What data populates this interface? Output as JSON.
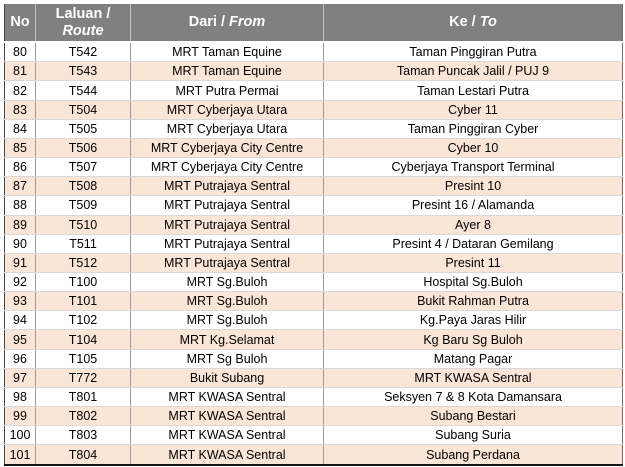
{
  "table": {
    "header": {
      "no": "No",
      "laluan_line1": "Laluan /",
      "laluan_line2": "Route",
      "dari_text": "Dari /",
      "dari_italic": "From",
      "ke_text": "Ke /",
      "ke_italic": "To"
    },
    "rows": [
      {
        "no": "80",
        "route": "T542",
        "from": "MRT Taman Equine",
        "to": "Taman Pinggiran Putra"
      },
      {
        "no": "81",
        "route": "T543",
        "from": "MRT Taman Equine",
        "to": "Taman Puncak Jalil / PUJ 9"
      },
      {
        "no": "82",
        "route": "T544",
        "from": "MRT Putra Permai",
        "to": "Taman Lestari Putra"
      },
      {
        "no": "83",
        "route": "T504",
        "from": "MRT Cyberjaya Utara",
        "to": "Cyber 11"
      },
      {
        "no": "84",
        "route": "T505",
        "from": "MRT Cyberjaya Utara",
        "to": "Taman Pinggiran Cyber"
      },
      {
        "no": "85",
        "route": "T506",
        "from": "MRT Cyberjaya City Centre",
        "to": "Cyber 10"
      },
      {
        "no": "86",
        "route": "T507",
        "from": "MRT Cyberjaya City Centre",
        "to": "Cyberjaya Transport Terminal"
      },
      {
        "no": "87",
        "route": "T508",
        "from": "MRT Putrajaya Sentral",
        "to": "Presint 10"
      },
      {
        "no": "88",
        "route": "T509",
        "from": "MRT Putrajaya Sentral",
        "to": "Presint 16 / Alamanda"
      },
      {
        "no": "89",
        "route": "T510",
        "from": "MRT Putrajaya Sentral",
        "to": "Ayer 8"
      },
      {
        "no": "90",
        "route": "T511",
        "from": "MRT Putrajaya Sentral",
        "to": "Presint 4 / Dataran Gemilang"
      },
      {
        "no": "91",
        "route": "T512",
        "from": "MRT Putrajaya Sentral",
        "to": "Presint 11"
      },
      {
        "no": "92",
        "route": "T100",
        "from": "MRT Sg.Buloh",
        "to": "Hospital Sg.Buloh"
      },
      {
        "no": "93",
        "route": "T101",
        "from": "MRT Sg.Buloh",
        "to": "Bukit Rahman Putra"
      },
      {
        "no": "94",
        "route": "T102",
        "from": "MRT Sg.Buloh",
        "to": "Kg.Paya Jaras Hilir"
      },
      {
        "no": "95",
        "route": "T104",
        "from": "MRT Kg.Selamat",
        "to": "Kg Baru Sg Buloh"
      },
      {
        "no": "96",
        "route": "T105",
        "from": "MRT Sg Buloh",
        "to": "Matang Pagar"
      },
      {
        "no": "97",
        "route": "T772",
        "from": "Bukit Subang",
        "to": "MRT KWASA Sentral"
      },
      {
        "no": "98",
        "route": "T801",
        "from": "MRT KWASA Sentral",
        "to": "Seksyen 7 & 8 Kota Damansara"
      },
      {
        "no": "99",
        "route": "T802",
        "from": "MRT KWASA Sentral",
        "to": "Subang Bestari"
      },
      {
        "no": "100",
        "route": "T803",
        "from": "MRT KWASA Sentral",
        "to": "Subang Suria"
      },
      {
        "no": "101",
        "route": "T804",
        "from": "MRT KWASA Sentral",
        "to": "Subang Perdana"
      }
    ],
    "colors": {
      "header_bg": "#808080",
      "header_text": "#ffffff",
      "row_bg": "#ffffff",
      "row_alt_bg": "#fbe5d6",
      "body_text": "#000000",
      "divider_vertical": "#9c9a9a",
      "divider_horizontal": "#d9d9d9"
    }
  }
}
